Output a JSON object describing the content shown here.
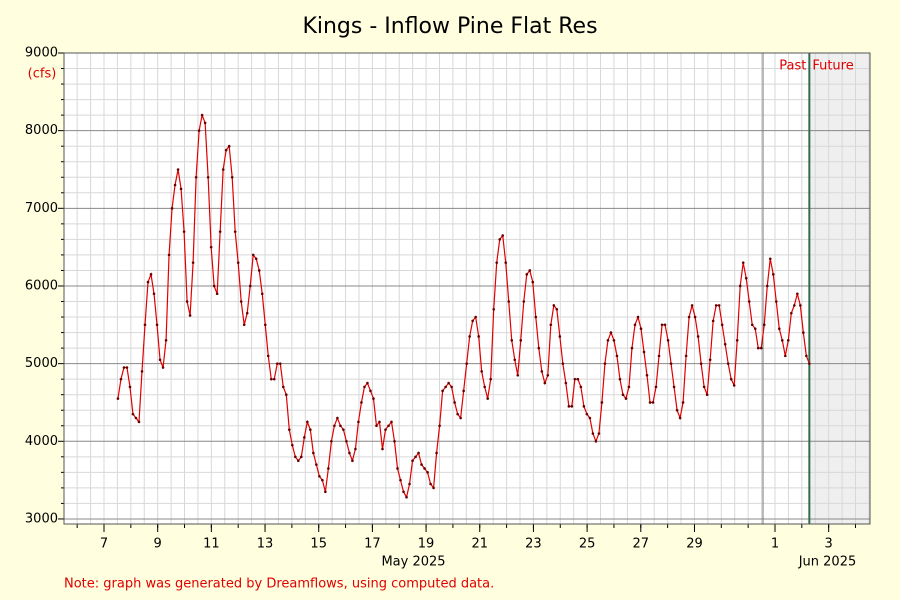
{
  "chart_data": {
    "type": "line",
    "title": "Kings - Inflow Pine Flat Res",
    "y_label": "(cfs)",
    "note": "Note: graph was generated by Dreamflows, using computed data.",
    "past_label": "Past",
    "future_label": "Future",
    "forecast_start": 33.28,
    "month_labels": [
      "May 2025",
      "Jun 2025"
    ],
    "color": "#e00000",
    "grid": true,
    "xlim": [
      5.51,
      35.54
    ],
    "ylim": [
      2935,
      9000
    ],
    "yticks": [
      3000,
      4000,
      5000,
      6000,
      7000,
      8000,
      9000
    ],
    "xticks": [
      7,
      9,
      11,
      13,
      15,
      17,
      19,
      21,
      23,
      25,
      27,
      29,
      {
        "value": 32,
        "label": "1"
      },
      {
        "value": 34,
        "label": "3"
      }
    ],
    "x": [
      7.52,
      7.632,
      7.744,
      7.856,
      7.968,
      8.08,
      8.192,
      8.304,
      8.416,
      8.528,
      8.64,
      8.752,
      8.864,
      8.976,
      9.088,
      9.2,
      9.312,
      9.424,
      9.536,
      9.648,
      9.76,
      9.872,
      9.984,
      10.096,
      10.208,
      10.32,
      10.432,
      10.544,
      10.656,
      10.768,
      10.88,
      10.992,
      11.104,
      11.216,
      11.328,
      11.44,
      11.552,
      11.664,
      11.776,
      11.888,
      12,
      12.112,
      12.224,
      12.336,
      12.448,
      12.56,
      12.672,
      12.784,
      12.896,
      13.008,
      13.12,
      13.232,
      13.344,
      13.456,
      13.568,
      13.68,
      13.792,
      13.904,
      14.016,
      14.128,
      14.24,
      14.352,
      14.464,
      14.576,
      14.688,
      14.8,
      14.912,
      15.024,
      15.136,
      15.248,
      15.36,
      15.472,
      15.584,
      15.696,
      15.808,
      15.92,
      16.032,
      16.144,
      16.256,
      16.368,
      16.48,
      16.592,
      16.704,
      16.816,
      16.928,
      17.04,
      17.152,
      17.264,
      17.376,
      17.488,
      17.6,
      17.712,
      17.824,
      17.936,
      18.048,
      18.16,
      18.272,
      18.384,
      18.496,
      18.608,
      18.72,
      18.832,
      18.944,
      19.056,
      19.168,
      19.28,
      19.392,
      19.504,
      19.616,
      19.728,
      19.84,
      19.952,
      20.064,
      20.176,
      20.288,
      20.4,
      20.512,
      20.624,
      20.736,
      20.848,
      20.96,
      21.072,
      21.184,
      21.296,
      21.408,
      21.52,
      21.632,
      21.744,
      21.856,
      21.968,
      22.08,
      22.192,
      22.304,
      22.416,
      22.528,
      22.64,
      22.752,
      22.864,
      22.976,
      23.088,
      23.2,
      23.312,
      23.424,
      23.536,
      23.648,
      23.76,
      23.872,
      23.984,
      24.096,
      24.208,
      24.32,
      24.432,
      24.544,
      24.656,
      24.768,
      24.88,
      24.992,
      25.104,
      25.216,
      25.328,
      25.44,
      25.552,
      25.664,
      25.776,
      25.888,
      26,
      26.112,
      26.224,
      26.336,
      26.448,
      26.56,
      26.672,
      26.784,
      26.896,
      27.008,
      27.12,
      27.232,
      27.344,
      27.456,
      27.568,
      27.68,
      27.792,
      27.904,
      28.016,
      28.128,
      28.24,
      28.352,
      28.464,
      28.576,
      28.688,
      28.8,
      28.912,
      29.024,
      29.136,
      29.248,
      29.36,
      29.472,
      29.584,
      29.696,
      29.808,
      29.92,
      30.032,
      30.144,
      30.256,
      30.368,
      30.48,
      30.592,
      30.704,
      30.816,
      30.928,
      31.04,
      31.152,
      31.264,
      31.376,
      31.488,
      31.6,
      31.712,
      31.824,
      31.936,
      32.048,
      32.16,
      32.272,
      32.384,
      32.496,
      32.608,
      32.72,
      32.832,
      32.944,
      33.056,
      33.168,
      33.28
    ],
    "values": [
      4550,
      4800,
      4950,
      4950,
      4700,
      4350,
      4300,
      4250,
      4900,
      5500,
      6050,
      6150,
      5900,
      5500,
      5050,
      4950,
      5300,
      6400,
      7000,
      7300,
      7500,
      7250,
      6700,
      5800,
      5620,
      6300,
      7400,
      8000,
      8200,
      8100,
      7400,
      6500,
      6000,
      5900,
      6700,
      7500,
      7750,
      7800,
      7400,
      6700,
      6300,
      5800,
      5500,
      5650,
      6000,
      6400,
      6350,
      6200,
      5900,
      5500,
      5100,
      4800,
      4800,
      5000,
      5000,
      4700,
      4600,
      4150,
      3950,
      3800,
      3750,
      3800,
      4050,
      4250,
      4150,
      3850,
      3700,
      3550,
      3500,
      3350,
      3650,
      4000,
      4200,
      4300,
      4200,
      4150,
      4000,
      3850,
      3750,
      3900,
      4250,
      4500,
      4700,
      4750,
      4650,
      4550,
      4200,
      4250,
      3900,
      4150,
      4200,
      4250,
      4000,
      3650,
      3500,
      3350,
      3280,
      3450,
      3750,
      3800,
      3850,
      3700,
      3650,
      3600,
      3450,
      3400,
      3850,
      4200,
      4650,
      4700,
      4750,
      4700,
      4500,
      4350,
      4300,
      4650,
      5000,
      5350,
      5550,
      5600,
      5350,
      4900,
      4700,
      4550,
      4800,
      5700,
      6300,
      6600,
      6650,
      6300,
      5800,
      5300,
      5050,
      4850,
      5300,
      5800,
      6150,
      6200,
      6050,
      5600,
      5200,
      4900,
      4750,
      4850,
      5500,
      5750,
      5700,
      5350,
      5000,
      4750,
      4450,
      4450,
      4800,
      4800,
      4700,
      4450,
      4350,
      4300,
      4100,
      4000,
      4100,
      4500,
      5000,
      5300,
      5400,
      5300,
      5100,
      4800,
      4600,
      4550,
      4700,
      5200,
      5500,
      5600,
      5450,
      5150,
      4850,
      4500,
      4500,
      4700,
      5100,
      5500,
      5500,
      5300,
      5000,
      4700,
      4400,
      4300,
      4500,
      5100,
      5600,
      5750,
      5600,
      5350,
      5000,
      4700,
      4600,
      5050,
      5550,
      5750,
      5750,
      5500,
      5250,
      5000,
      4800,
      4720,
      5300,
      6000,
      6300,
      6100,
      5800,
      5500,
      5450,
      5200,
      5200,
      5500,
      6000,
      6350,
      6150,
      5800,
      5450,
      5300,
      5100,
      5300,
      5650,
      5750,
      5900,
      5750,
      5400,
      5100,
      5000
    ]
  }
}
